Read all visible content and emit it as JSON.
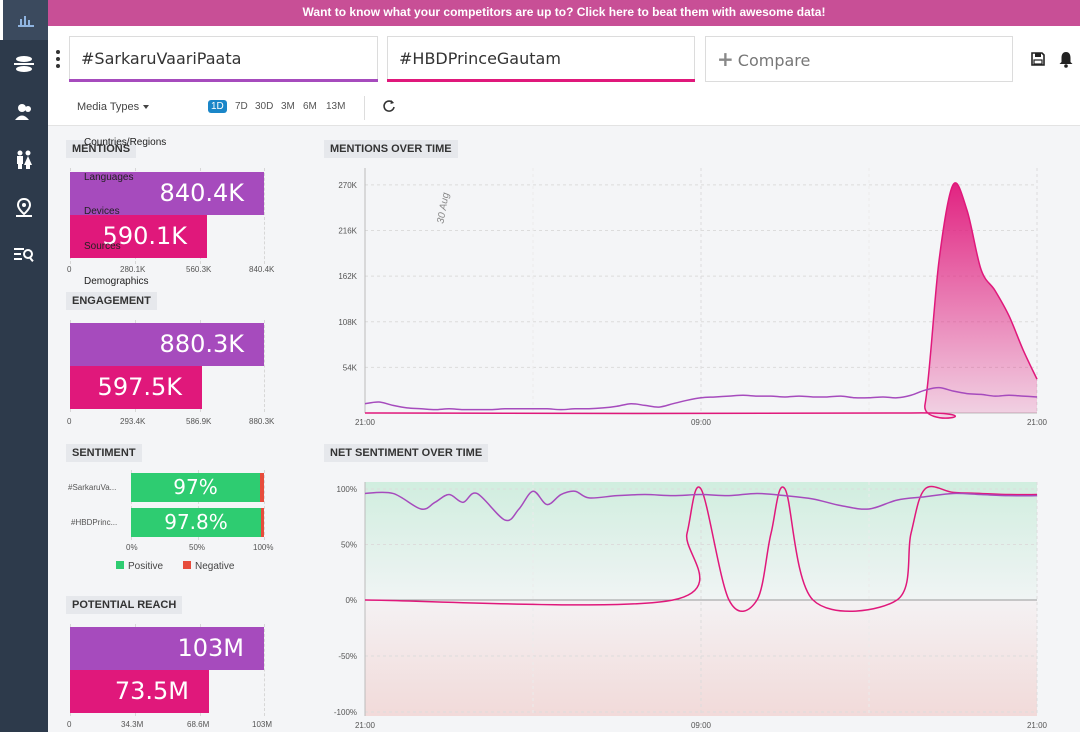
{
  "banner": {
    "text": "Want to know what your competitors are up to? Click here to beat them with awesome data!"
  },
  "sidebar": {
    "icons": [
      "bar-chart-icon",
      "layers-icon",
      "audience-icon",
      "demographics-icon",
      "location-icon",
      "search-list-icon"
    ]
  },
  "topics": [
    {
      "label": "#SarkaruVaariPaata",
      "color": "#a64bbd"
    },
    {
      "label": "#HBDPrinceGautam",
      "color": "#e0187b"
    }
  ],
  "compare": {
    "label": "Compare"
  },
  "toolbar": {
    "media_types": "Media Types",
    "ranges": [
      "1D",
      "7D",
      "30D",
      "3M",
      "6M",
      "13M"
    ],
    "active_range": "1D"
  },
  "filters": [
    "Countries/Regions",
    "Languages",
    "Devices",
    "Sources",
    "Demographics"
  ],
  "mentions": {
    "title": "MENTIONS",
    "values": [
      "840.4K",
      "590.1K"
    ],
    "fraction": [
      1.0,
      0.702
    ],
    "ticks": [
      "0",
      "280.1K",
      "560.3K",
      "840.4K"
    ]
  },
  "engagement": {
    "title": "ENGAGEMENT",
    "values": [
      "880.3K",
      "597.5K"
    ],
    "fraction": [
      1.0,
      0.679
    ],
    "ticks": [
      "0",
      "293.4K",
      "586.9K",
      "880.3K"
    ]
  },
  "sentiment": {
    "title": "SENTIMENT",
    "rows": [
      {
        "label": "#SarkaruVa...",
        "positive": "97%",
        "positive_pct": 97
      },
      {
        "label": "#HBDPrinc...",
        "positive": "97.8%",
        "positive_pct": 97.8
      }
    ],
    "ticks": [
      "0%",
      "50%",
      "100%"
    ],
    "legend": {
      "positive": "Positive",
      "negative": "Negative"
    },
    "colors": {
      "positive": "#2ecc71",
      "negative": "#e74c3c"
    }
  },
  "reach": {
    "title": "POTENTIAL REACH",
    "values": [
      "103M",
      "73.5M"
    ],
    "fraction": [
      1.0,
      0.714
    ],
    "ticks": [
      "0",
      "34.3M",
      "68.6M",
      "103M"
    ]
  },
  "chart_data": [
    {
      "type": "area",
      "title": "MENTIONS OVER TIME",
      "annotation": "30 Aug",
      "x_ticks": [
        "21:00",
        "09:00",
        "21:00"
      ],
      "y_ticks": [
        "54K",
        "108K",
        "162K",
        "216K",
        "270K"
      ],
      "ylim": [
        0,
        290000
      ],
      "series": [
        {
          "name": "#SarkaruVaariPaata",
          "color": "#a64bbd",
          "x": [
            0,
            0.5,
            1,
            1.5,
            2,
            2.5,
            3,
            3.5,
            4,
            4.5,
            5,
            5.5,
            6,
            6.5,
            7,
            7.5,
            8,
            8.5,
            9,
            9.5,
            10,
            10.5,
            11,
            11.5,
            12,
            12.5,
            13,
            13.5,
            14,
            14.5,
            15,
            15.5,
            16,
            16.5,
            17,
            17.5,
            18,
            18.5,
            19,
            19.5,
            20,
            20.5,
            21,
            21.5,
            22,
            22.5,
            23,
            23.5,
            24
          ],
          "values": [
            11000,
            13000,
            9000,
            6000,
            5000,
            4000,
            5000,
            4000,
            4000,
            4000,
            5000,
            5000,
            5000,
            5000,
            4000,
            5000,
            5000,
            6000,
            8000,
            11000,
            9000,
            7000,
            11000,
            15000,
            18000,
            19000,
            20000,
            21000,
            20000,
            20000,
            19000,
            20000,
            19000,
            19000,
            20000,
            18000,
            18000,
            19000,
            18000,
            21000,
            27000,
            30000,
            26000,
            23000,
            22000,
            20000,
            21000,
            20000,
            19000
          ]
        },
        {
          "name": "#HBDPrinceGautam",
          "color": "#e0187b",
          "x": [
            0,
            19.5,
            20,
            20.5,
            21,
            21.5,
            22,
            22.5,
            23,
            23.5,
            24
          ],
          "values": [
            0,
            0,
            10000,
            180000,
            270000,
            240000,
            170000,
            145000,
            115000,
            75000,
            40000
          ]
        }
      ]
    },
    {
      "type": "line",
      "title": "NET SENTIMENT OVER TIME",
      "x_ticks": [
        "21:00",
        "09:00",
        "21:00"
      ],
      "y_ticks": [
        "100%",
        "50%",
        "0%",
        "-50%",
        "-100%"
      ],
      "ylim": [
        -100,
        100
      ],
      "series": [
        {
          "name": "#SarkaruVaariPaata",
          "color": "#a64bbd",
          "x": [
            0,
            1,
            2,
            2.5,
            3,
            3.5,
            4,
            5,
            5.5,
            6,
            6.5,
            7,
            7.5,
            8,
            9,
            10,
            11,
            12,
            13,
            14,
            15,
            16,
            17,
            18,
            19,
            20,
            21,
            22,
            23,
            24
          ],
          "values": [
            96,
            96,
            82,
            88,
            95,
            88,
            96,
            72,
            82,
            98,
            86,
            95,
            98,
            92,
            94,
            95,
            94,
            95,
            94,
            96,
            94,
            91,
            85,
            82,
            90,
            93,
            96,
            95,
            94,
            94
          ]
        },
        {
          "name": "#HBDPrinceGautam",
          "color": "#e0187b",
          "x": [
            0,
            11,
            11.5,
            12,
            13,
            14,
            14.5,
            15,
            16,
            19,
            19.5,
            20,
            21,
            22,
            23,
            24
          ],
          "values": [
            0,
            0,
            60,
            100,
            0,
            0,
            60,
            100,
            0,
            0,
            60,
            100,
            97,
            96,
            95,
            95
          ]
        }
      ]
    }
  ]
}
